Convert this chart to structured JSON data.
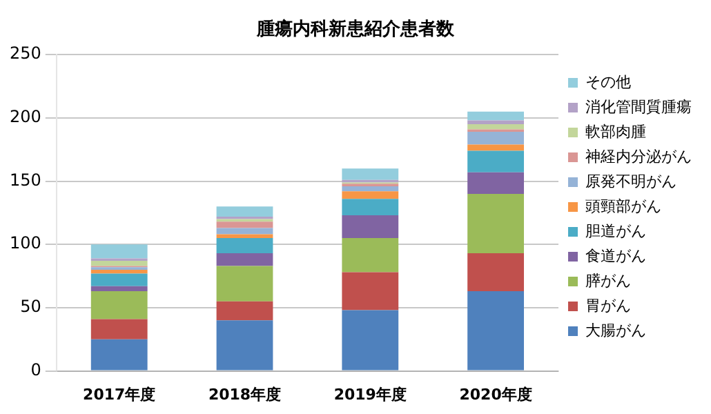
{
  "chart_data": {
    "type": "bar",
    "title": "腫瘍内科新患紹介患者数",
    "stacked": true,
    "categories": [
      "2017年度",
      "2018年度",
      "2019年度",
      "2020年度"
    ],
    "series": [
      {
        "name": "大腸がん",
        "color": "#4f81bd",
        "values": [
          25,
          40,
          48,
          63
        ]
      },
      {
        "name": "胃がん",
        "color": "#c0504d",
        "values": [
          16,
          15,
          30,
          30
        ]
      },
      {
        "name": "膵がん",
        "color": "#9bbb59",
        "values": [
          22,
          28,
          27,
          47
        ]
      },
      {
        "name": "食道がん",
        "color": "#8064a2",
        "values": [
          4,
          10,
          18,
          17
        ]
      },
      {
        "name": "胆道がん",
        "color": "#4bacc6",
        "values": [
          10,
          12,
          13,
          17
        ]
      },
      {
        "name": "頭頸部がん",
        "color": "#f79646",
        "values": [
          3,
          3,
          6,
          5
        ]
      },
      {
        "name": "原発不明がん",
        "color": "#95b3d7",
        "values": [
          2,
          5,
          4,
          10
        ]
      },
      {
        "name": "神経内分泌がん",
        "color": "#da9694",
        "values": [
          1,
          5,
          2,
          2
        ]
      },
      {
        "name": "軟部肉腫",
        "color": "#c3d69b",
        "values": [
          4,
          2,
          1,
          4
        ]
      },
      {
        "name": "消化管間質腫瘍",
        "color": "#b3a2c7",
        "values": [
          2,
          2,
          2,
          3
        ]
      },
      {
        "name": "その他",
        "color": "#93cddd",
        "values": [
          11,
          8,
          9,
          7
        ]
      }
    ],
    "ylim": [
      0,
      250
    ],
    "yticks": [
      0,
      50,
      100,
      150,
      200,
      250
    ],
    "grid": "y",
    "legend": "right"
  }
}
